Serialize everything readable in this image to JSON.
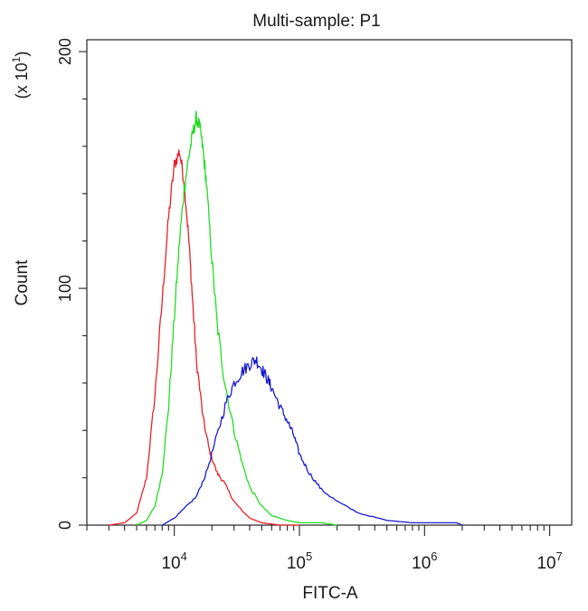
{
  "chart_data": {
    "type": "line",
    "title": "Multi-sample: P1",
    "xlabel": "FITC-A",
    "ylabel": "Count",
    "y_multiplier": "(x 10",
    "y_multiplier_exp": "1",
    "y_multiplier_close": ")",
    "xscale": "log",
    "xlim": [
      2000,
      15000000
    ],
    "ylim": [
      0,
      205
    ],
    "grid": false,
    "legend": "none",
    "x_ticks": [
      {
        "base": "10",
        "exp": "4",
        "value": 10000
      },
      {
        "base": "10",
        "exp": "5",
        "value": 100000
      },
      {
        "base": "10",
        "exp": "6",
        "value": 1000000
      },
      {
        "base": "10",
        "exp": "7",
        "value": 10000000
      }
    ],
    "y_ticks": [
      {
        "label": "0",
        "value": 0
      },
      {
        "label": "100",
        "value": 100
      },
      {
        "label": "200",
        "value": 200
      }
    ],
    "series": [
      {
        "color": "#e8202a",
        "x": [
          3000,
          4000,
          5000,
          6000,
          7000,
          8000,
          9000,
          10000,
          11000,
          12000,
          13000,
          14000,
          15000,
          17000,
          19000,
          22000,
          25000,
          30000,
          35000,
          40000,
          50000,
          70000,
          100000
        ],
        "y": [
          0,
          1,
          5,
          20,
          55,
          95,
          130,
          152,
          158,
          145,
          122,
          95,
          70,
          45,
          32,
          22,
          18,
          10,
          6,
          3,
          1,
          0,
          0
        ]
      },
      {
        "color": "#22dd22",
        "x": [
          5000,
          6000,
          7000,
          8000,
          9000,
          10000,
          11000,
          12000,
          13000,
          14000,
          15000,
          16000,
          17000,
          18000,
          20000,
          22000,
          25000,
          30000,
          35000,
          40000,
          50000,
          60000,
          80000,
          100000,
          150000,
          200000
        ],
        "y": [
          0,
          2,
          8,
          22,
          50,
          88,
          120,
          142,
          155,
          165,
          172,
          168,
          158,
          145,
          112,
          85,
          62,
          40,
          26,
          16,
          8,
          4,
          2,
          1,
          1,
          0
        ]
      },
      {
        "color": "#1a1acc",
        "x": [
          8000,
          10000,
          12000,
          15000,
          18000,
          22000,
          26000,
          30000,
          35000,
          40000,
          45000,
          50000,
          55000,
          60000,
          70000,
          80000,
          90000,
          100000,
          120000,
          150000,
          200000,
          300000,
          500000,
          800000,
          1200000,
          1800000,
          2000000
        ],
        "y": [
          0,
          3,
          7,
          12,
          22,
          38,
          52,
          60,
          65,
          68,
          70,
          66,
          62,
          58,
          50,
          44,
          38,
          30,
          22,
          15,
          10,
          5,
          2,
          1,
          1,
          1,
          0
        ]
      }
    ]
  }
}
